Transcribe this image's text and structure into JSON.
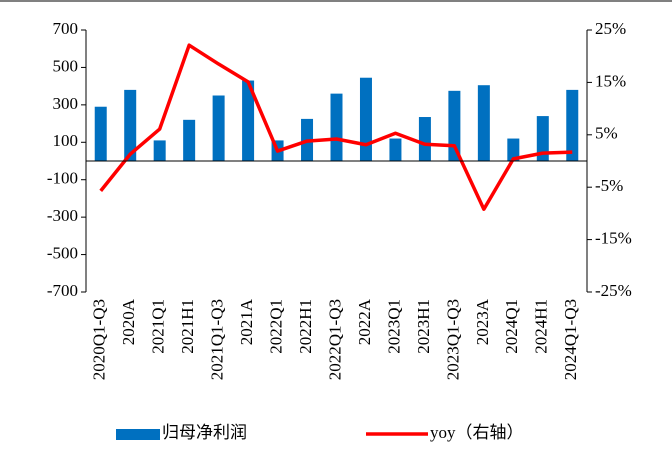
{
  "chart_data": {
    "type": "bar_line",
    "categories": [
      "2020Q1-Q3",
      "2020A",
      "2021Q1",
      "2021H1",
      "2021Q1-Q3",
      "2021A",
      "2022Q1",
      "2022H1",
      "2022Q1-Q3",
      "2022A",
      "2023Q1",
      "2023H1",
      "2023Q1-Q3",
      "2023A",
      "2024Q1",
      "2024H1",
      "2024Q1-Q3"
    ],
    "series": [
      {
        "name": "归母净利润",
        "type": "bar",
        "color": "#0070c0",
        "values": [
          290,
          380,
          110,
          220,
          350,
          430,
          110,
          225,
          360,
          445,
          120,
          235,
          375,
          405,
          120,
          240,
          380
        ]
      },
      {
        "name": "yoy（右轴）",
        "type": "line",
        "axis": "y2",
        "color": "#ff0000",
        "values": [
          -5.7,
          1.3,
          6.1,
          22.1,
          18.5,
          15.1,
          1.9,
          3.8,
          4.2,
          3.1,
          5.3,
          3.2,
          2.9,
          -9.2,
          0.4,
          1.5,
          1.7
        ]
      }
    ],
    "ylim": [
      -700,
      700
    ],
    "yticks": [
      -700,
      -500,
      -300,
      -100,
      100,
      300,
      500,
      700
    ],
    "y2lim": [
      -25,
      25
    ],
    "y2ticks": [
      {
        "value": -25,
        "label": "-25%"
      },
      {
        "value": -15,
        "label": "-15%"
      },
      {
        "value": -5,
        "label": "-5%"
      },
      {
        "value": 5,
        "label": "5%"
      },
      {
        "value": 15,
        "label": "15%"
      },
      {
        "value": 25,
        "label": "25%"
      }
    ]
  }
}
